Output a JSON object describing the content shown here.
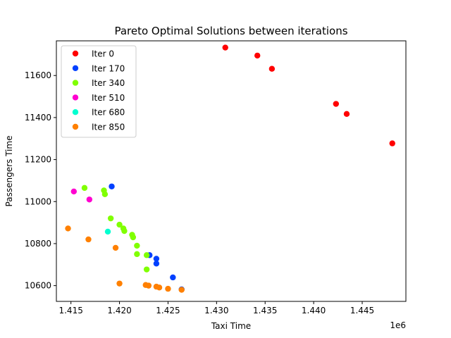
{
  "chart_data": {
    "type": "scatter",
    "title": "Pareto Optimal Solutions between iterations",
    "xlabel": "Taxi Time",
    "ylabel": "Passengers Time",
    "x_offset_label": "1e6",
    "x_scale": 1000000,
    "xlim": [
      1.4135,
      1.4495
    ],
    "ylim": [
      10525,
      11765
    ],
    "xticks": [
      1.415,
      1.42,
      1.425,
      1.43,
      1.435,
      1.44,
      1.445
    ],
    "xtick_labels": [
      "1.415",
      "1.420",
      "1.425",
      "1.430",
      "1.435",
      "1.440",
      "1.445"
    ],
    "yticks": [
      10600,
      10800,
      11000,
      11200,
      11400,
      11600
    ],
    "ytick_labels": [
      "10600",
      "10800",
      "11000",
      "11200",
      "11400",
      "11600"
    ],
    "grid": false,
    "legend_position": "top-left",
    "series": [
      {
        "name": "Iter 0",
        "color": "#ff0000",
        "points": [
          [
            1.4309,
            11733
          ],
          [
            1.4342,
            11695
          ],
          [
            1.4357,
            11632
          ],
          [
            1.4423,
            11465
          ],
          [
            1.4434,
            11417
          ],
          [
            1.4481,
            11277
          ]
        ]
      },
      {
        "name": "Iter 170",
        "color": "#0040ff",
        "points": [
          [
            1.4192,
            11072
          ],
          [
            1.4231,
            10745
          ],
          [
            1.4238,
            10728
          ],
          [
            1.4238,
            10705
          ],
          [
            1.4255,
            10639
          ],
          [
            1.4264,
            10582
          ]
        ]
      },
      {
        "name": "Iter 340",
        "color": "#80ff00",
        "points": [
          [
            1.4164,
            11065
          ],
          [
            1.4184,
            11053
          ],
          [
            1.4185,
            11035
          ],
          [
            1.4191,
            10920
          ],
          [
            1.42,
            10890
          ],
          [
            1.4204,
            10872
          ],
          [
            1.4205,
            10860
          ],
          [
            1.4213,
            10842
          ],
          [
            1.4214,
            10830
          ],
          [
            1.4218,
            10790
          ],
          [
            1.4218,
            10750
          ],
          [
            1.4228,
            10745
          ],
          [
            1.4228,
            10677
          ]
        ]
      },
      {
        "name": "Iter 510",
        "color": "#ff00d0",
        "points": [
          [
            1.4153,
            11048
          ],
          [
            1.4169,
            11010
          ]
        ]
      },
      {
        "name": "Iter 680",
        "color": "#00ffd0",
        "points": [
          [
            1.4188,
            10857
          ]
        ]
      },
      {
        "name": "Iter 850",
        "color": "#ff8000",
        "points": [
          [
            1.4147,
            10872
          ],
          [
            1.4168,
            10820
          ],
          [
            1.4196,
            10780
          ],
          [
            1.42,
            10610
          ],
          [
            1.4227,
            10603
          ],
          [
            1.423,
            10600
          ],
          [
            1.4238,
            10595
          ],
          [
            1.4241,
            10591
          ],
          [
            1.425,
            10585
          ],
          [
            1.4264,
            10580
          ]
        ]
      }
    ]
  }
}
